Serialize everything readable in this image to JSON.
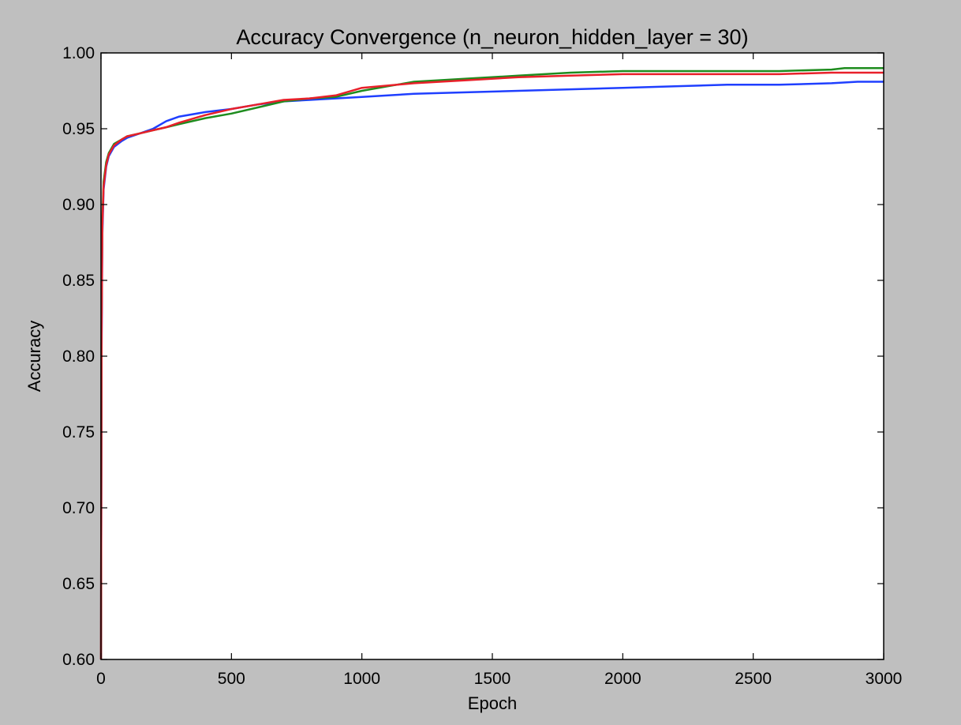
{
  "chart_data": {
    "type": "line",
    "title": "Accuracy Convergence (n_neuron_hidden_layer = 30)",
    "xlabel": "Epoch",
    "ylabel": "Accuracy",
    "xlim": [
      0,
      3000
    ],
    "ylim": [
      0.6,
      1.0
    ],
    "xticks": [
      0,
      500,
      1000,
      1500,
      2000,
      2500,
      3000
    ],
    "xtick_labels": [
      "0",
      "500",
      "1000",
      "1500",
      "2000",
      "2500",
      "3000"
    ],
    "yticks": [
      0.6,
      0.65,
      0.7,
      0.75,
      0.8,
      0.85,
      0.9,
      0.95,
      1.0
    ],
    "ytick_labels": [
      "0.60",
      "0.65",
      "0.70",
      "0.75",
      "0.80",
      "0.85",
      "0.90",
      "0.95",
      "1.00"
    ],
    "grid": false,
    "legend": "none",
    "series": [
      {
        "color": "#1f3fff",
        "x": [
          0,
          2,
          5,
          10,
          20,
          30,
          50,
          80,
          100,
          150,
          200,
          250,
          300,
          400,
          500,
          600,
          700,
          800,
          900,
          1000,
          1200,
          1400,
          1600,
          1800,
          2000,
          2200,
          2400,
          2600,
          2800,
          2900,
          3000
        ],
        "y": [
          0.6,
          0.8,
          0.88,
          0.91,
          0.925,
          0.932,
          0.938,
          0.942,
          0.944,
          0.947,
          0.95,
          0.955,
          0.958,
          0.961,
          0.963,
          0.966,
          0.968,
          0.969,
          0.97,
          0.971,
          0.973,
          0.974,
          0.975,
          0.976,
          0.977,
          0.978,
          0.979,
          0.979,
          0.98,
          0.981,
          0.981
        ]
      },
      {
        "color": "#1e8c1e",
        "x": [
          0,
          2,
          5,
          10,
          20,
          30,
          50,
          80,
          100,
          150,
          200,
          250,
          300,
          400,
          500,
          600,
          700,
          800,
          900,
          1000,
          1100,
          1200,
          1400,
          1600,
          1800,
          2000,
          2200,
          2400,
          2600,
          2800,
          2850,
          3000
        ],
        "y": [
          0.6,
          0.82,
          0.89,
          0.915,
          0.928,
          0.934,
          0.94,
          0.943,
          0.945,
          0.947,
          0.949,
          0.951,
          0.953,
          0.957,
          0.96,
          0.964,
          0.968,
          0.97,
          0.971,
          0.975,
          0.978,
          0.981,
          0.983,
          0.985,
          0.987,
          0.988,
          0.988,
          0.988,
          0.988,
          0.989,
          0.99,
          0.99
        ]
      },
      {
        "color": "#e8202a",
        "x": [
          0,
          2,
          5,
          10,
          20,
          30,
          50,
          80,
          100,
          150,
          200,
          250,
          300,
          400,
          500,
          600,
          700,
          800,
          900,
          1000,
          1200,
          1400,
          1600,
          1800,
          2000,
          2200,
          2400,
          2600,
          2800,
          3000
        ],
        "y": [
          0.6,
          0.81,
          0.885,
          0.912,
          0.926,
          0.933,
          0.939,
          0.943,
          0.945,
          0.947,
          0.949,
          0.951,
          0.954,
          0.959,
          0.963,
          0.966,
          0.969,
          0.97,
          0.972,
          0.977,
          0.98,
          0.982,
          0.984,
          0.985,
          0.986,
          0.986,
          0.986,
          0.986,
          0.987,
          0.987
        ]
      }
    ]
  }
}
